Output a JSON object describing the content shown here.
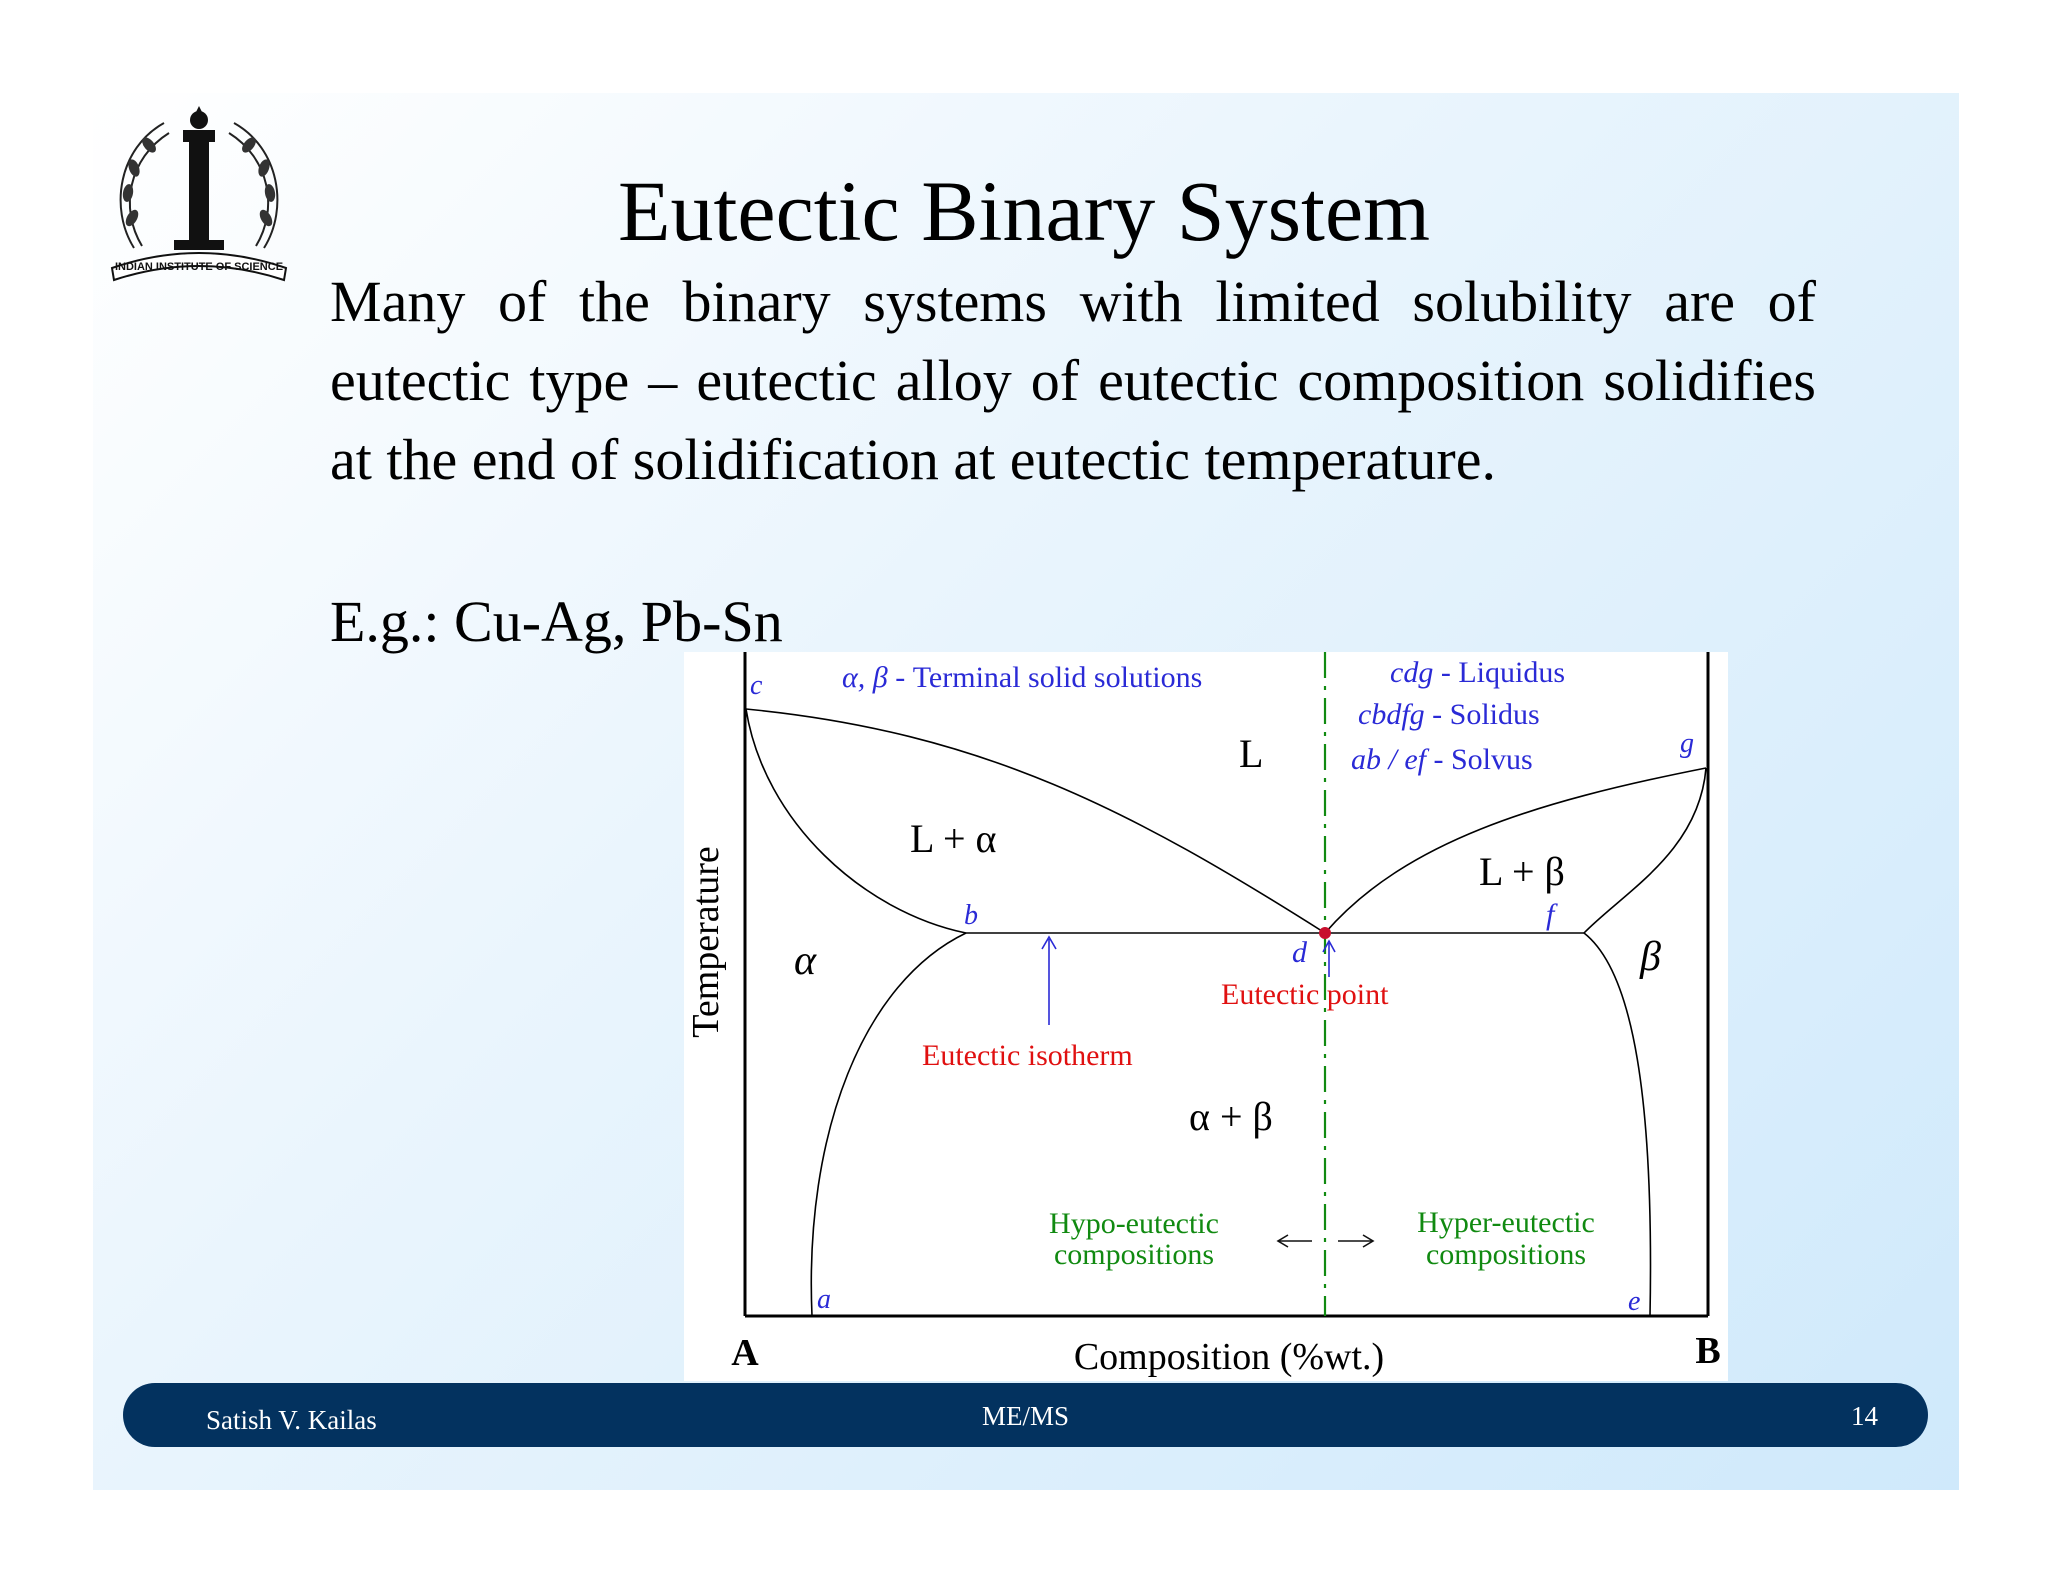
{
  "slide": {
    "title": "Eutectic Binary System",
    "paragraph": "Many of the binary systems with limited solubility are of eutectic type – eutectic alloy of eutectic composition solidifies at the end of solidification at eutectic temperature.",
    "example": "E.g.: Cu-Ag, Pb-Sn"
  },
  "logo": {
    "icon": "indian-institute-of-science-seal",
    "text": "INDIAN INSTITUTE OF SCIENCE"
  },
  "diagram": {
    "legend": {
      "terminal_symbols": "α, β",
      "terminal_desc": " - Terminal solid solutions",
      "liquidus_symbols": "cdg",
      "liquidus_desc": " - Liquidus",
      "solidus_symbols": "cbdfg",
      "solidus_desc": " - Solidus",
      "solvus_symbols": "ab / ef",
      "solvus_desc": " - Solvus"
    },
    "phases": {
      "liquid": "L",
      "l_alpha": "L + α",
      "l_beta": "L + β",
      "alpha": "α",
      "beta": "β",
      "alpha_beta": "α + β"
    },
    "points": {
      "a": "a",
      "b": "b",
      "c": "c",
      "d": "d",
      "e": "e",
      "f": "f",
      "g": "g"
    },
    "annotations": {
      "eutectic_point": "Eutectic point",
      "eutectic_isotherm": "Eutectic isotherm",
      "hypo_line1": "Hypo-eutectic",
      "hypo_line2": "compositions",
      "hyper_line1": "Hyper-eutectic",
      "hyper_line2": "compositions"
    },
    "axes": {
      "y_label": "Temperature",
      "x_label": "Composition (%wt.)",
      "left_component": "A",
      "right_component": "B"
    },
    "colors": {
      "label_blue": "#2a2ad6",
      "annotation_red": "#e01010",
      "divider_green": "#118a11",
      "eutectic_dot": "#c8102e"
    }
  },
  "footer": {
    "author": "Satish V. Kailas",
    "department": "ME/MS",
    "page_number": "14"
  }
}
